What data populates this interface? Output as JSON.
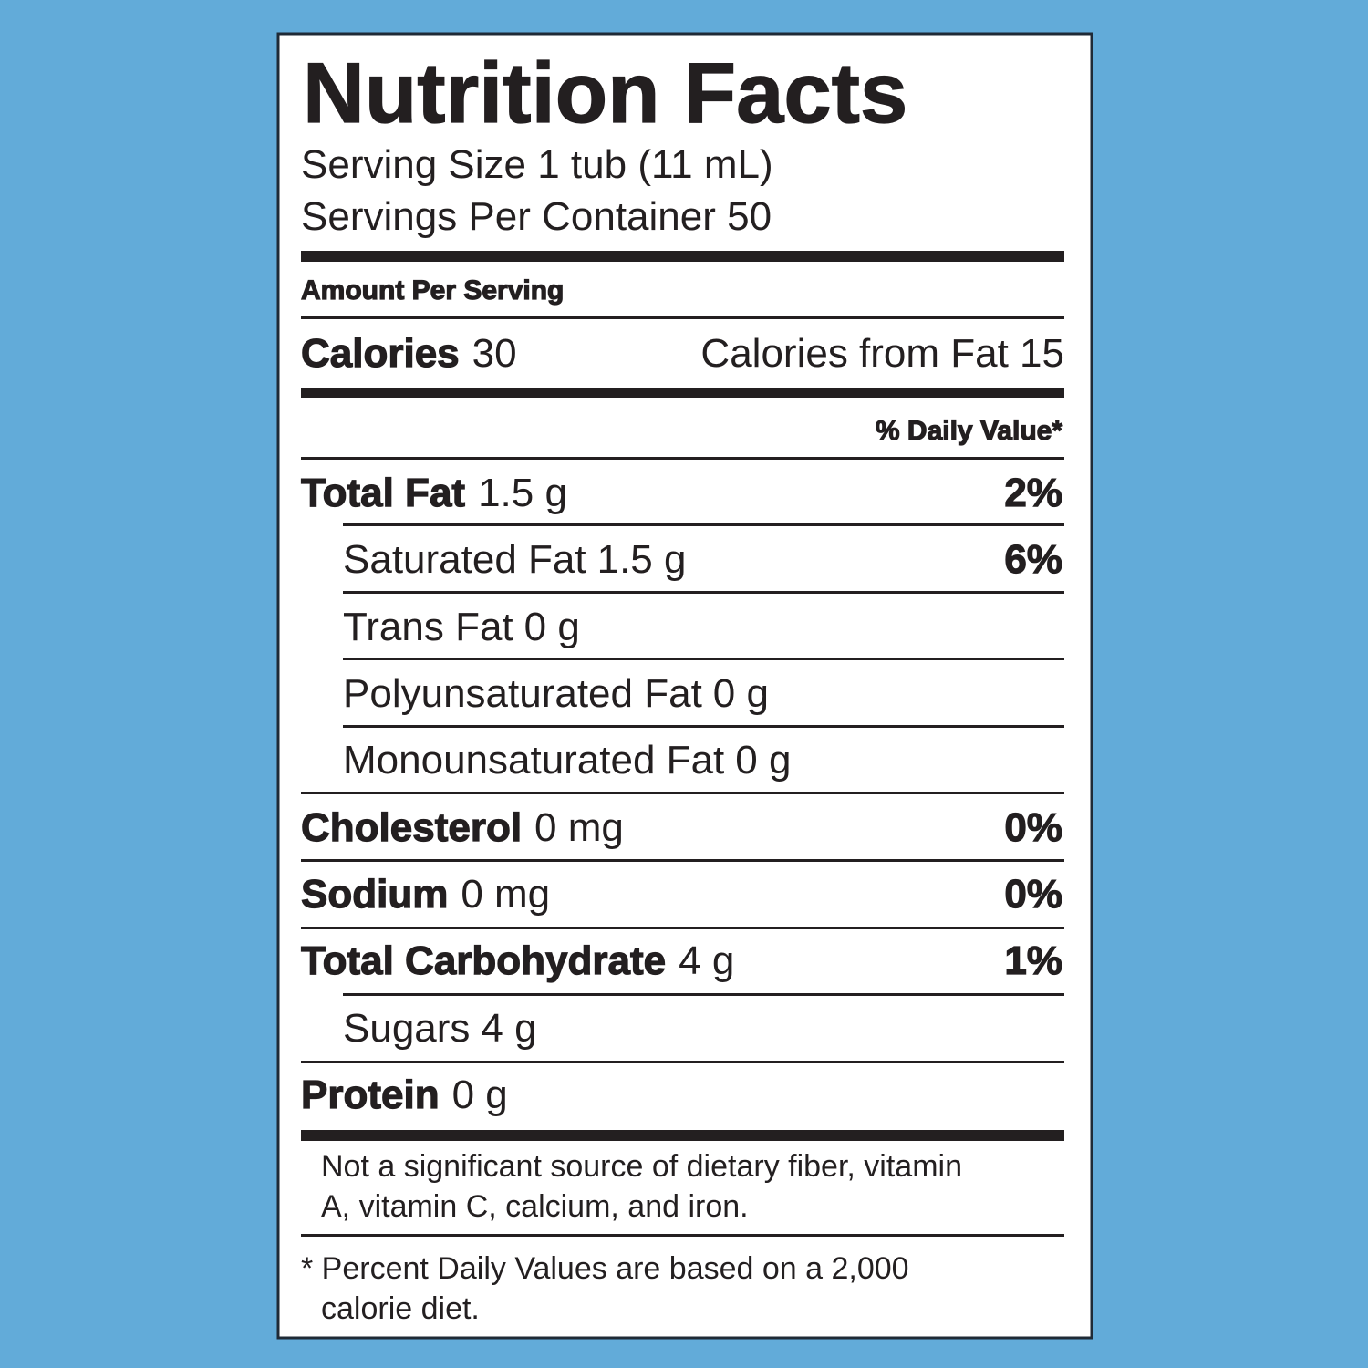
{
  "header": {
    "title": "Nutrition Facts",
    "serving_size": "Serving Size 1 tub (11 mL)",
    "servings_per_container": "Servings Per Container 50"
  },
  "amount_per_serving": "Amount Per Serving",
  "calories": {
    "label": "Calories",
    "value": "30",
    "from_fat": "Calories from Fat 15"
  },
  "daily_value_header": "% Daily Value*",
  "nutrients": [
    {
      "name": "Total Fat",
      "amount": "1.5 g",
      "dv": "2%"
    },
    {
      "name": "Saturated Fat",
      "amount": "1.5 g",
      "dv": "6%"
    },
    {
      "name": "Trans Fat",
      "amount": "0 g"
    },
    {
      "name": "Polyunsaturated Fat",
      "amount": "0 g"
    },
    {
      "name": "Monounsaturated Fat",
      "amount": "0 g"
    },
    {
      "name": "Cholesterol",
      "amount": "0 mg",
      "dv": "0%"
    },
    {
      "name": "Sodium",
      "amount": "0 mg",
      "dv": "0%"
    },
    {
      "name": "Total Carbohydrate",
      "amount": "4 g",
      "dv": "1%"
    },
    {
      "name": "Sugars",
      "amount": "4 g"
    },
    {
      "name": "Protein",
      "amount": "0 g"
    }
  ],
  "footnotes": [
    [
      "Not a significant source of dietary fiber, vitamin",
      "A, vitamin C, calcium, and iron."
    ],
    [
      "* Percent Daily Values are based on a 2,000",
      "calorie diet."
    ]
  ]
}
